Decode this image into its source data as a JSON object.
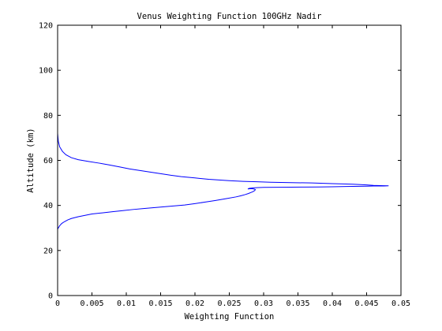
{
  "chart_data": {
    "type": "line",
    "title": "Venus Weighting Function 100GHz Nadir",
    "xlabel": "Weighting Function",
    "ylabel": "Altitude (km)",
    "xlim": [
      0,
      0.05
    ],
    "ylim": [
      0,
      120
    ],
    "x_ticks": [
      0,
      0.005,
      0.01,
      0.015,
      0.02,
      0.025,
      0.03,
      0.035,
      0.04,
      0.045,
      0.05
    ],
    "x_tick_labels": [
      "0",
      "0.005",
      "0.01",
      "0.015",
      "0.02",
      "0.025",
      "0.03",
      "0.035",
      "0.04",
      "0.045",
      "0.05"
    ],
    "y_ticks": [
      0,
      20,
      40,
      60,
      80,
      100,
      120
    ],
    "y_tick_labels": [
      "0",
      "20",
      "40",
      "60",
      "80",
      "100",
      "120"
    ],
    "grid": false,
    "line_color": "#0000ff",
    "series": [
      {
        "x": [
          0,
          0.0003,
          0.0006,
          0.001,
          0.0015,
          0.002,
          0.003,
          0.004,
          0.005,
          0.0065,
          0.008,
          0.0095,
          0.011,
          0.0125,
          0.014,
          0.0155,
          0.017,
          0.0185,
          0.02,
          0.0215,
          0.023,
          0.0245,
          0.026,
          0.0267,
          0.0273,
          0.0278,
          0.0282,
          0.0285,
          0.0287,
          0.0288,
          0.0287,
          0.0284,
          0.028,
          0.0277,
          0.0279,
          0.0285,
          0.029,
          0.03,
          0.032,
          0.034,
          0.036,
          0.038,
          0.04,
          0.042,
          0.044,
          0.045,
          0.0455,
          0.046,
          0.0475,
          0.0482,
          0.0475,
          0.046,
          0.045,
          0.043,
          0.04,
          0.037,
          0.034,
          0.031,
          0.029,
          0.027,
          0.025,
          0.0235,
          0.022,
          0.02,
          0.018,
          0.0165,
          0.015,
          0.0135,
          0.012,
          0.0105,
          0.009,
          0.0075,
          0.006,
          0.0045,
          0.003,
          0.002,
          0.0012,
          0.0007,
          0.0003,
          0.0001,
          0
        ],
        "y": [
          29.5,
          31,
          32,
          32.8,
          33.6,
          34.2,
          35,
          35.6,
          36.2,
          36.7,
          37.2,
          37.7,
          38.2,
          38.6,
          39,
          39.4,
          39.8,
          40.2,
          40.8,
          41.5,
          42.2,
          43,
          43.8,
          44.3,
          44.8,
          45.3,
          45.8,
          46.2,
          46.6,
          47,
          47.2,
          47.4,
          47.4,
          47.3,
          47.6,
          47.8,
          47.9,
          48,
          48.05,
          48.1,
          48.15,
          48.2,
          48.3,
          48.4,
          48.5,
          48.55,
          48.6,
          48.63,
          48.65,
          48.7,
          48.75,
          48.9,
          49.1,
          49.4,
          49.7,
          50,
          50.1,
          50.3,
          50.5,
          50.7,
          51,
          51.3,
          51.6,
          52.2,
          52.8,
          53.4,
          54.1,
          54.8,
          55.5,
          56.2,
          57.1,
          58,
          58.8,
          59.5,
          60.3,
          61.2,
          62.5,
          64,
          66,
          68.5,
          72
        ]
      }
    ]
  }
}
